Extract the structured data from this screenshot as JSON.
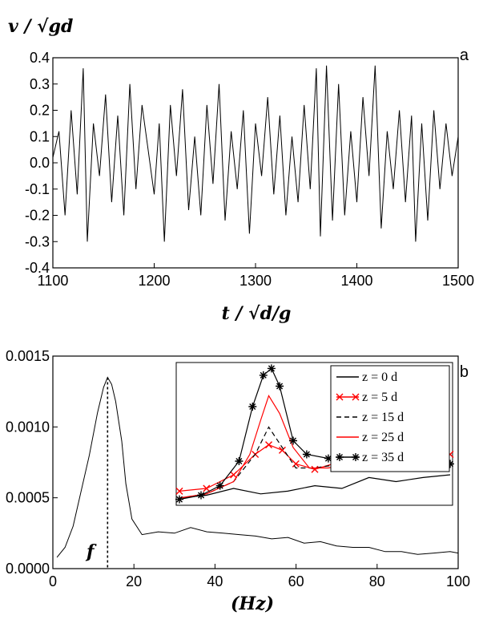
{
  "chart_data": [
    {
      "panel": "a",
      "type": "line",
      "ylabel_display": "v / √gd",
      "xlabel_display": "t / √d/g",
      "xlim": [
        1100,
        1500
      ],
      "ylim": [
        -0.4,
        0.4
      ],
      "x_ticks": [
        "1100",
        "1200",
        "1300",
        "1400",
        "1500"
      ],
      "y_ticks": [
        "0.4",
        "0.3",
        "0.2",
        "0.1",
        "0.0",
        "-0.1",
        "-0.2",
        "-0.3",
        "-0.4"
      ],
      "series": [
        {
          "color": "#000000",
          "points": [
            [
              1100,
              0.02
            ],
            [
              1106,
              0.12
            ],
            [
              1112,
              -0.2
            ],
            [
              1118,
              0.2
            ],
            [
              1124,
              -0.12
            ],
            [
              1130,
              0.36
            ],
            [
              1134,
              -0.3
            ],
            [
              1140,
              0.15
            ],
            [
              1146,
              -0.05
            ],
            [
              1152,
              0.26
            ],
            [
              1158,
              -0.15
            ],
            [
              1164,
              0.18
            ],
            [
              1170,
              -0.2
            ],
            [
              1176,
              0.3
            ],
            [
              1182,
              -0.1
            ],
            [
              1188,
              0.22
            ],
            [
              1194,
              0.05
            ],
            [
              1200,
              -0.12
            ],
            [
              1205,
              0.15
            ],
            [
              1210,
              -0.3
            ],
            [
              1216,
              0.22
            ],
            [
              1222,
              -0.05
            ],
            [
              1228,
              0.28
            ],
            [
              1234,
              -0.18
            ],
            [
              1240,
              0.1
            ],
            [
              1246,
              -0.2
            ],
            [
              1252,
              0.22
            ],
            [
              1258,
              -0.08
            ],
            [
              1264,
              0.3
            ],
            [
              1270,
              -0.22
            ],
            [
              1276,
              0.12
            ],
            [
              1282,
              -0.1
            ],
            [
              1288,
              0.2
            ],
            [
              1294,
              -0.27
            ],
            [
              1300,
              0.15
            ],
            [
              1306,
              -0.05
            ],
            [
              1312,
              0.25
            ],
            [
              1318,
              -0.12
            ],
            [
              1324,
              0.18
            ],
            [
              1330,
              -0.2
            ],
            [
              1336,
              0.1
            ],
            [
              1342,
              -0.15
            ],
            [
              1348,
              0.22
            ],
            [
              1354,
              -0.1
            ],
            [
              1360,
              0.36
            ],
            [
              1364,
              -0.28
            ],
            [
              1370,
              0.37
            ],
            [
              1376,
              -0.22
            ],
            [
              1382,
              0.3
            ],
            [
              1388,
              -0.2
            ],
            [
              1394,
              0.12
            ],
            [
              1400,
              -0.15
            ],
            [
              1406,
              0.25
            ],
            [
              1412,
              -0.05
            ],
            [
              1418,
              0.37
            ],
            [
              1424,
              -0.25
            ],
            [
              1430,
              0.12
            ],
            [
              1436,
              -0.1
            ],
            [
              1442,
              0.2
            ],
            [
              1448,
              -0.15
            ],
            [
              1454,
              0.18
            ],
            [
              1458,
              -0.3
            ],
            [
              1464,
              0.15
            ],
            [
              1470,
              -0.22
            ],
            [
              1476,
              0.2
            ],
            [
              1482,
              -0.1
            ],
            [
              1488,
              0.15
            ],
            [
              1494,
              -0.05
            ],
            [
              1500,
              0.1
            ]
          ]
        }
      ]
    },
    {
      "panel": "b",
      "type": "line",
      "xlabel_display": "(Hz)",
      "xlim": [
        0,
        100
      ],
      "ylim": [
        0.0,
        0.0015
      ],
      "x_ticks": [
        "0",
        "20",
        "40",
        "60",
        "80",
        "100"
      ],
      "y_ticks": [
        "0.0015",
        "0.0010",
        "0.0005",
        "0.0000"
      ],
      "annotation": "f",
      "peak_x": 13.5,
      "series": [
        {
          "color": "#000000",
          "points": [
            [
              1,
              8e-05
            ],
            [
              3,
              0.00015
            ],
            [
              5,
              0.0003
            ],
            [
              7,
              0.00055
            ],
            [
              9,
              0.0008
            ],
            [
              11,
              0.0011
            ],
            [
              12.5,
              0.00128
            ],
            [
              13.5,
              0.00135
            ],
            [
              14.5,
              0.0013
            ],
            [
              15.5,
              0.00118
            ],
            [
              17,
              0.0009
            ],
            [
              18,
              0.0006
            ],
            [
              19.5,
              0.00035
            ],
            [
              22,
              0.00024
            ],
            [
              26,
              0.00026
            ],
            [
              30,
              0.00025
            ],
            [
              34,
              0.00029
            ],
            [
              38,
              0.00026
            ],
            [
              42,
              0.00025
            ],
            [
              46,
              0.00024
            ],
            [
              50,
              0.00023
            ],
            [
              54,
              0.00021
            ],
            [
              58,
              0.00022
            ],
            [
              62,
              0.00018
            ],
            [
              66,
              0.00019
            ],
            [
              70,
              0.00016
            ],
            [
              74,
              0.00015
            ],
            [
              78,
              0.00015
            ],
            [
              82,
              0.00012
            ],
            [
              86,
              0.00012
            ],
            [
              90,
              0.0001
            ],
            [
              94,
              0.00011
            ],
            [
              98,
              0.00012
            ],
            [
              100,
              0.00011
            ]
          ]
        }
      ],
      "inset": {
        "legend": [
          {
            "label": "z =  0 d",
            "color": "#000000",
            "style": "solid",
            "marker": "none"
          },
          {
            "label": "z =  5 d",
            "color": "#ff0000",
            "style": "solid",
            "marker": "x"
          },
          {
            "label": "z = 15 d",
            "color": "#000000",
            "style": "dashed",
            "marker": "none"
          },
          {
            "label": "z = 25 d",
            "color": "#ff0000",
            "style": "solid",
            "marker": "none"
          },
          {
            "label": "z = 35 d",
            "color": "#000000",
            "style": "solid",
            "marker": "star"
          }
        ],
        "xlim": [
          0,
          100
        ],
        "ylim": [
          0,
          1
        ],
        "series": [
          {
            "label": "z = 0 d",
            "color": "#000000",
            "dash": "",
            "points": [
              [
                0,
                0.03
              ],
              [
                10,
                0.05
              ],
              [
                20,
                0.1
              ],
              [
                30,
                0.06
              ],
              [
                40,
                0.08
              ],
              [
                50,
                0.12
              ],
              [
                60,
                0.1
              ],
              [
                70,
                0.18
              ],
              [
                80,
                0.15
              ],
              [
                90,
                0.18
              ],
              [
                100,
                0.2
              ]
            ]
          },
          {
            "label": "z = 5 d",
            "color": "#ff0000",
            "dash": "",
            "points": [
              [
                0,
                0.08
              ],
              [
                10,
                0.1
              ],
              [
                20,
                0.2
              ],
              [
                28,
                0.35
              ],
              [
                33,
                0.42
              ],
              [
                38,
                0.38
              ],
              [
                43,
                0.28
              ],
              [
                50,
                0.24
              ],
              [
                60,
                0.3
              ],
              [
                70,
                0.35
              ],
              [
                80,
                0.32
              ],
              [
                85,
                0.4
              ],
              [
                90,
                0.35
              ],
              [
                95,
                0.38
              ],
              [
                100,
                0.35
              ]
            ]
          },
          {
            "label": "z = 15 d",
            "color": "#000000",
            "dash": "6,4",
            "points": [
              [
                0,
                0.03
              ],
              [
                10,
                0.06
              ],
              [
                20,
                0.15
              ],
              [
                28,
                0.35
              ],
              [
                33,
                0.55
              ],
              [
                38,
                0.4
              ],
              [
                43,
                0.25
              ],
              [
                50,
                0.25
              ],
              [
                60,
                0.28
              ],
              [
                70,
                0.3
              ],
              [
                80,
                0.25
              ],
              [
                90,
                0.3
              ],
              [
                100,
                0.25
              ]
            ]
          },
          {
            "label": "z = 25 d",
            "color": "#ff0000",
            "dash": "",
            "points": [
              [
                0,
                0.03
              ],
              [
                10,
                0.06
              ],
              [
                20,
                0.15
              ],
              [
                26,
                0.35
              ],
              [
                30,
                0.6
              ],
              [
                33,
                0.78
              ],
              [
                37,
                0.65
              ],
              [
                42,
                0.4
              ],
              [
                48,
                0.25
              ],
              [
                55,
                0.25
              ],
              [
                62,
                0.28
              ],
              [
                70,
                0.3
              ],
              [
                78,
                0.35
              ],
              [
                85,
                0.3
              ],
              [
                92,
                0.3
              ],
              [
                100,
                0.3
              ]
            ]
          },
          {
            "label": "z = 35 d",
            "color": "#000000",
            "dash": "",
            "points": [
              [
                0,
                0.02
              ],
              [
                8,
                0.05
              ],
              [
                15,
                0.12
              ],
              [
                22,
                0.3
              ],
              [
                27,
                0.7
              ],
              [
                31,
                0.93
              ],
              [
                34,
                0.98
              ],
              [
                37,
                0.85
              ],
              [
                42,
                0.45
              ],
              [
                47,
                0.35
              ],
              [
                55,
                0.32
              ],
              [
                62,
                0.33
              ],
              [
                70,
                0.38
              ],
              [
                78,
                0.35
              ],
              [
                85,
                0.28
              ],
              [
                92,
                0.3
              ],
              [
                100,
                0.28
              ]
            ]
          }
        ]
      }
    }
  ]
}
